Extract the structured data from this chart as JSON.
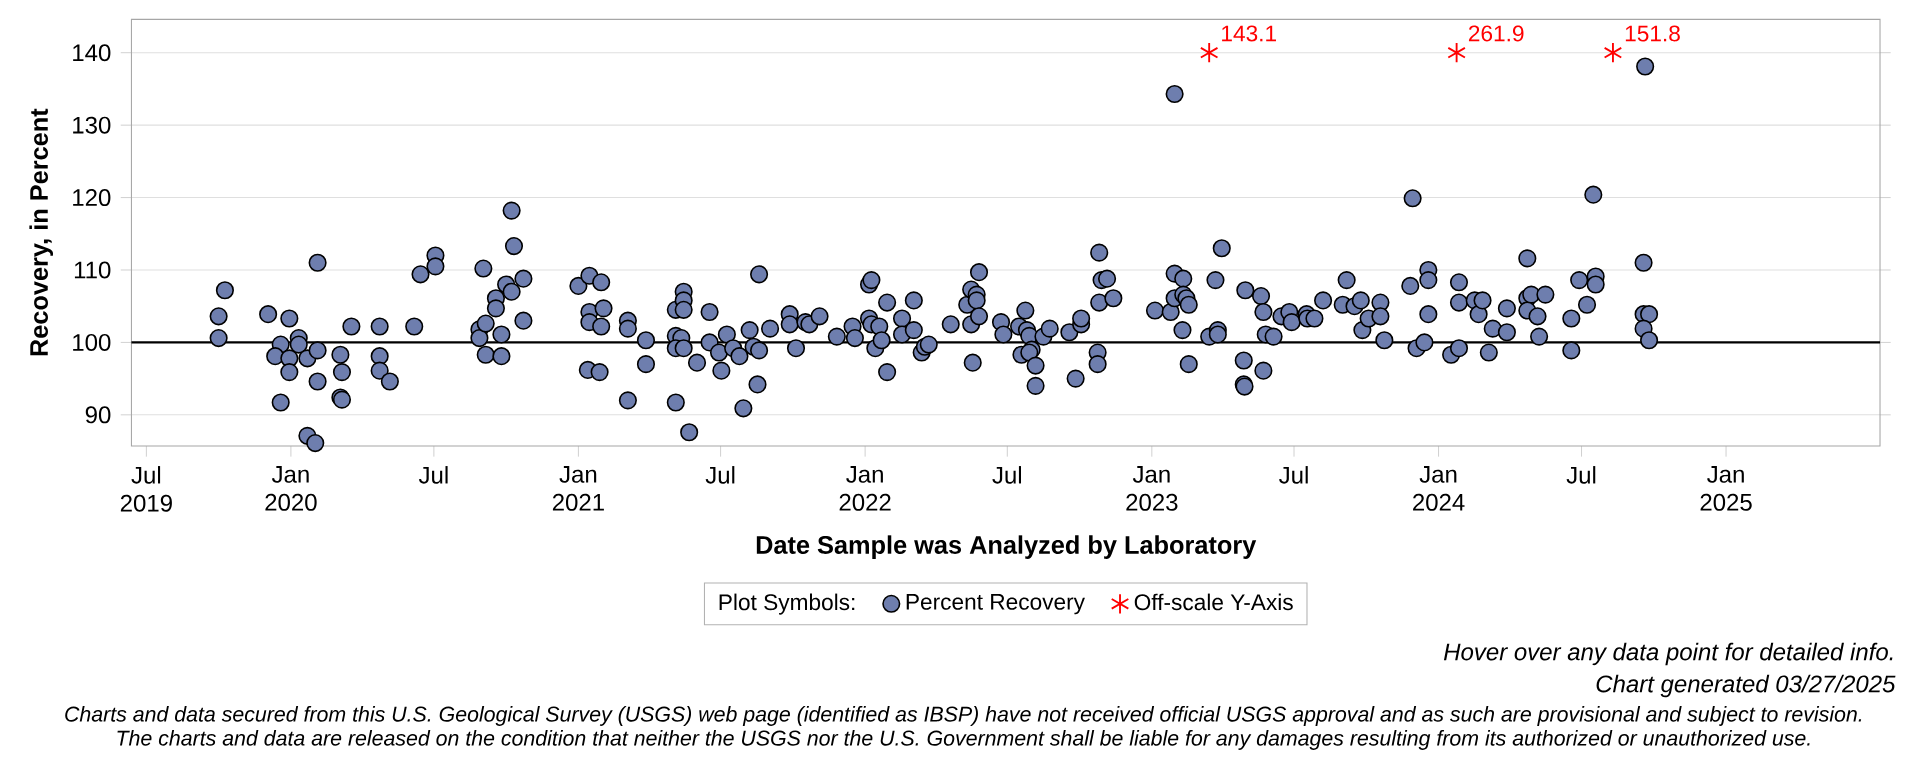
{
  "chart_data": {
    "type": "scatter",
    "xlabel": "Date Sample was Analyzed by Laboratory",
    "ylabel": "Recovery, in Percent",
    "legend_title": "Plot Symbols:",
    "legend": "bottom",
    "grid": "y",
    "xlim": [
      "2019-06-12",
      "2025-07-16"
    ],
    "ylim": [
      85.7,
      144.6
    ],
    "yticks": [
      90,
      100,
      110,
      120,
      130,
      140
    ],
    "xticks": [
      {
        "value": "2019-07-01",
        "label": "Jul 2019"
      },
      {
        "value": "2020-01-01",
        "label": "Jan 2020"
      },
      {
        "value": "2020-07-01",
        "label": "Jul"
      },
      {
        "value": "2021-01-01",
        "label": "Jan 2021"
      },
      {
        "value": "2021-07-01",
        "label": "Jul"
      },
      {
        "value": "2022-01-01",
        "label": "Jan 2022"
      },
      {
        "value": "2022-07-01",
        "label": "Jul"
      },
      {
        "value": "2023-01-01",
        "label": "Jan 2023"
      },
      {
        "value": "2023-07-01",
        "label": "Jul"
      },
      {
        "value": "2024-01-01",
        "label": "Jan 2024"
      },
      {
        "value": "2024-07-01",
        "label": "Jul"
      },
      {
        "value": "2025-01-01",
        "label": "Jan 2025"
      }
    ],
    "ref_lines": [
      {
        "axis": "y",
        "value": 100,
        "color": "#000000"
      }
    ],
    "series": [
      {
        "name": "Percent Recovery",
        "color": "#6e7eae",
        "marker": "circle",
        "x": [
          "2019-10-01",
          "2019-10-01",
          "2019-10-09",
          "2019-12-03",
          "2019-12-30",
          "2019-12-19",
          "2019-12-12",
          "2019-12-30",
          "2019-12-30",
          "2019-12-19",
          "2020-01-11",
          "2020-01-11",
          "2020-01-22",
          "2020-02-04",
          "2020-02-04",
          "2020-02-04",
          "2020-01-22",
          "2020-02-01",
          "2020-03-04",
          "2020-03-06",
          "2020-03-04",
          "2020-03-06",
          "2020-03-18",
          "2020-04-23",
          "2020-04-23",
          "2020-04-23",
          "2020-05-06",
          "2020-06-06",
          "2020-06-14",
          "2020-07-03",
          "2020-07-03",
          "2020-09-02",
          "2020-08-28",
          "2020-08-28",
          "2020-09-05",
          "2020-09-05",
          "2020-09-18",
          "2020-09-18",
          "2020-09-25",
          "2020-09-25",
          "2020-10-01",
          "2020-10-08",
          "2020-10-11",
          "2020-10-08",
          "2020-10-23",
          "2020-10-23",
          "2021-01-01",
          "2021-01-15",
          "2021-01-30",
          "2021-01-15",
          "2021-01-15",
          "2021-02-02",
          "2021-01-30",
          "2021-01-13",
          "2021-01-28",
          "2021-03-05",
          "2021-03-05",
          "2021-03-28",
          "2021-03-28",
          "2021-03-05",
          "2021-05-05",
          "2021-05-15",
          "2021-05-15",
          "2021-05-15",
          "2021-05-05",
          "2021-05-12",
          "2021-05-05",
          "2021-05-15",
          "2021-05-05",
          "2021-05-22",
          "2021-06-01",
          "2021-06-17",
          "2021-06-17",
          "2021-06-29",
          "2021-07-02",
          "2021-07-09",
          "2021-07-17",
          "2021-07-25",
          "2021-07-30",
          "2021-08-07",
          "2021-08-12",
          "2021-08-19",
          "2021-08-17",
          "2021-08-19",
          "2021-09-02",
          "2021-09-27",
          "2021-09-27",
          "2021-10-05",
          "2021-10-17",
          "2021-10-22",
          "2021-11-04",
          "2021-11-26",
          "2021-12-16",
          "2021-12-19",
          "2022-01-06",
          "2022-01-09",
          "2022-01-06",
          "2022-01-09",
          "2022-01-19",
          "2022-01-14",
          "2022-01-22",
          "2022-01-29",
          "2022-01-29",
          "2022-02-17",
          "2022-02-17",
          "2022-03-04",
          "2022-03-04",
          "2022-03-14",
          "2022-03-18",
          "2022-03-23",
          "2022-04-20",
          "2022-05-11",
          "2022-05-16",
          "2022-05-16",
          "2022-05-23",
          "2022-05-23",
          "2022-05-26",
          "2022-05-26",
          "2022-05-18",
          "2022-06-23",
          "2022-06-26",
          "2022-07-16",
          "2022-07-19",
          "2022-07-24",
          "2022-07-26",
          "2022-07-29",
          "2022-08-01",
          "2022-07-29",
          "2022-08-06",
          "2022-08-06",
          "2022-08-16",
          "2022-08-24",
          "2022-09-18",
          "2022-09-26",
          "2022-10-03",
          "2022-10-03",
          "2022-10-24",
          "2022-10-24",
          "2022-10-26",
          "2022-10-26",
          "2022-10-29",
          "2022-11-05",
          "2022-11-13",
          "2023-01-05",
          "2023-01-25",
          "2023-01-30",
          "2023-01-30",
          "2023-02-10",
          "2023-01-30",
          "2023-02-10",
          "2023-02-14",
          "2023-02-17",
          "2023-02-09",
          "2023-02-17",
          "2023-03-23",
          "2023-03-31",
          "2023-03-15",
          "2023-03-26",
          "2023-03-26",
          "2023-04-30",
          "2023-04-28",
          "2023-04-28",
          "2023-04-29",
          "2023-05-20",
          "2023-05-23",
          "2023-05-26",
          "2023-06-05",
          "2023-05-23",
          "2023-06-15",
          "2023-06-25",
          "2023-06-28",
          "2023-07-17",
          "2023-07-18",
          "2023-07-27",
          "2023-08-07",
          "2023-09-01",
          "2023-09-06",
          "2023-09-16",
          "2023-09-24",
          "2023-09-26",
          "2023-10-04",
          "2023-10-19",
          "2023-10-19",
          "2023-10-24",
          "2023-11-26",
          "2023-11-29",
          "2023-12-19",
          "2023-12-19",
          "2023-12-19",
          "2023-12-04",
          "2023-12-14",
          "2024-01-17",
          "2024-01-27",
          "2024-01-27",
          "2024-01-27",
          "2024-02-16",
          "2024-02-21",
          "2024-02-26",
          "2024-03-05",
          "2024-03-10",
          "2024-03-28",
          "2024-03-28",
          "2024-04-23",
          "2024-04-23",
          "2024-04-28",
          "2024-04-23",
          "2024-05-06",
          "2024-05-16",
          "2024-05-08",
          "2024-06-18",
          "2024-06-18",
          "2024-06-28",
          "2024-07-08",
          "2024-07-16",
          "2024-07-19",
          "2024-07-19",
          "2024-09-20",
          "2024-09-18",
          "2024-09-18",
          "2024-09-25",
          "2024-09-18",
          "2024-09-25"
        ],
        "values": [
          100.6,
          103.6,
          107.2,
          103.9,
          103.3,
          99.7,
          98.1,
          97.8,
          95.9,
          91.7,
          100.6,
          99.7,
          97.8,
          98.9,
          111.0,
          94.6,
          87.1,
          86.1,
          98.3,
          95.9,
          92.4,
          92.1,
          102.2,
          102.2,
          98.1,
          96.1,
          94.6,
          102.2,
          109.4,
          112.0,
          110.5,
          110.2,
          101.8,
          100.6,
          102.6,
          98.3,
          106.1,
          104.7,
          101.1,
          98.1,
          108.0,
          118.2,
          113.3,
          107.0,
          108.8,
          103.0,
          107.8,
          109.2,
          108.3,
          104.2,
          102.8,
          104.7,
          102.2,
          96.2,
          95.9,
          103.0,
          101.9,
          100.3,
          97.0,
          92.0,
          104.5,
          107.0,
          105.8,
          104.5,
          100.9,
          100.6,
          99.2,
          99.2,
          91.7,
          87.6,
          97.2,
          104.2,
          100.0,
          98.6,
          96.1,
          101.1,
          99.2,
          98.1,
          90.9,
          101.7,
          99.4,
          98.9,
          94.2,
          109.4,
          101.9,
          103.9,
          102.5,
          99.2,
          102.8,
          102.5,
          103.6,
          100.8,
          102.2,
          100.6,
          108.0,
          108.6,
          103.3,
          102.5,
          102.2,
          99.2,
          100.3,
          105.5,
          95.9,
          103.3,
          101.1,
          105.8,
          101.7,
          98.6,
          99.4,
          99.7,
          102.5,
          105.2,
          107.3,
          102.5,
          106.6,
          105.8,
          109.7,
          103.6,
          97.2,
          102.8,
          101.1,
          102.2,
          98.3,
          104.4,
          101.7,
          100.9,
          99.0,
          98.6,
          96.8,
          94.0,
          100.8,
          101.9,
          101.4,
          95.0,
          102.5,
          103.3,
          98.6,
          97.0,
          105.5,
          112.4,
          108.6,
          108.8,
          106.1,
          104.4,
          104.2,
          134.3,
          109.5,
          108.8,
          106.1,
          106.6,
          106.1,
          105.2,
          101.7,
          97.0,
          108.6,
          113.0,
          100.8,
          101.7,
          101.1,
          107.2,
          97.5,
          94.2,
          93.9,
          106.4,
          104.2,
          101.1,
          100.8,
          96.1,
          103.6,
          104.2,
          102.8,
          103.9,
          103.3,
          103.3,
          105.8,
          105.2,
          108.6,
          105.0,
          105.8,
          101.7,
          103.3,
          105.5,
          103.6,
          100.3,
          107.8,
          119.9,
          110.0,
          108.6,
          103.9,
          99.2,
          100.0,
          98.3,
          108.3,
          105.5,
          99.2,
          105.8,
          103.9,
          105.8,
          98.6,
          101.9,
          104.7,
          101.4,
          111.6,
          106.1,
          106.6,
          104.4,
          103.6,
          106.6,
          100.8,
          103.3,
          98.9,
          108.6,
          105.2,
          120.4,
          109.1,
          108.0,
          138.1,
          111.0,
          103.9,
          103.9,
          101.9,
          100.3
        ]
      },
      {
        "name": "Off-scale Y-Axis",
        "color": "#ff0000",
        "marker": "cross",
        "x": [
          "2023-03-15",
          "2024-01-24",
          "2024-08-10"
        ],
        "values": [
          140,
          140,
          140
        ]
      }
    ],
    "annotations": [
      {
        "text": "143.1",
        "x": "2023-03-15",
        "y": 140
      },
      {
        "text": "261.9",
        "x": "2024-01-24",
        "y": 140
      },
      {
        "text": "151.8",
        "x": "2024-08-10",
        "y": 140
      },
      "Hover over any data point for detailed info.",
      "Chart generated 03/27/2025",
      "Charts and data secured from this U.S. Geological Survey (USGS) web page (identified as IBSP) have not received official USGS approval and as such are provisional and subject to revision.",
      "The charts and data are released on the condition that neither the USGS nor the U.S. Government shall be liable for any damages resulting from its authorized or unauthorized use."
    ]
  }
}
